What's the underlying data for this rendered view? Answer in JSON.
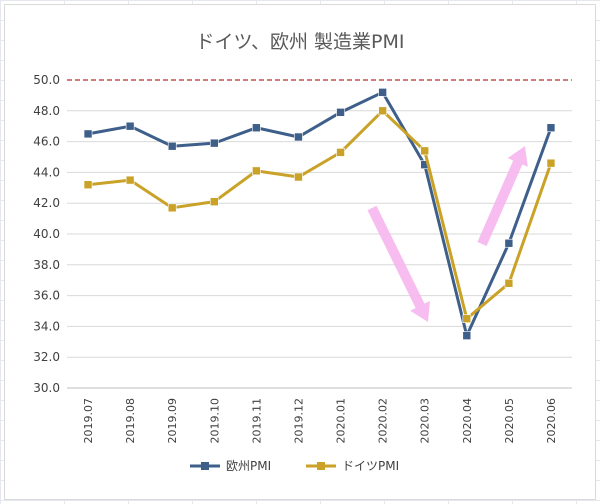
{
  "chart_data": {
    "type": "line",
    "title": "ドイツ、欧州 製造業PMI",
    "categories": [
      "2019.07",
      "2019.08",
      "2019.09",
      "2019.10",
      "2019.11",
      "2019.12",
      "2020.01",
      "2020.02",
      "2020.03",
      "2020.04",
      "2020.05",
      "2020.06"
    ],
    "series": [
      {
        "name": "欧州PMI",
        "color": "#3d5f8a",
        "values": [
          46.5,
          47.0,
          45.7,
          45.9,
          46.9,
          46.3,
          47.9,
          49.2,
          44.5,
          33.4,
          39.4,
          46.9
        ]
      },
      {
        "name": "ドイツPMI",
        "color": "#c9a227",
        "values": [
          43.2,
          43.5,
          41.7,
          42.1,
          44.1,
          43.7,
          45.3,
          48.0,
          45.4,
          34.5,
          36.8,
          44.6
        ]
      }
    ],
    "yticks": [
      "30.0",
      "32.0",
      "34.0",
      "36.0",
      "38.0",
      "40.0",
      "42.0",
      "44.0",
      "46.0",
      "48.0",
      "50.0"
    ],
    "ylim": [
      30,
      50
    ],
    "reference_line": {
      "value": 50,
      "color": "#c0504d"
    },
    "legend_position": "bottom",
    "annotation_arrow_color": "#f6b6ee"
  }
}
